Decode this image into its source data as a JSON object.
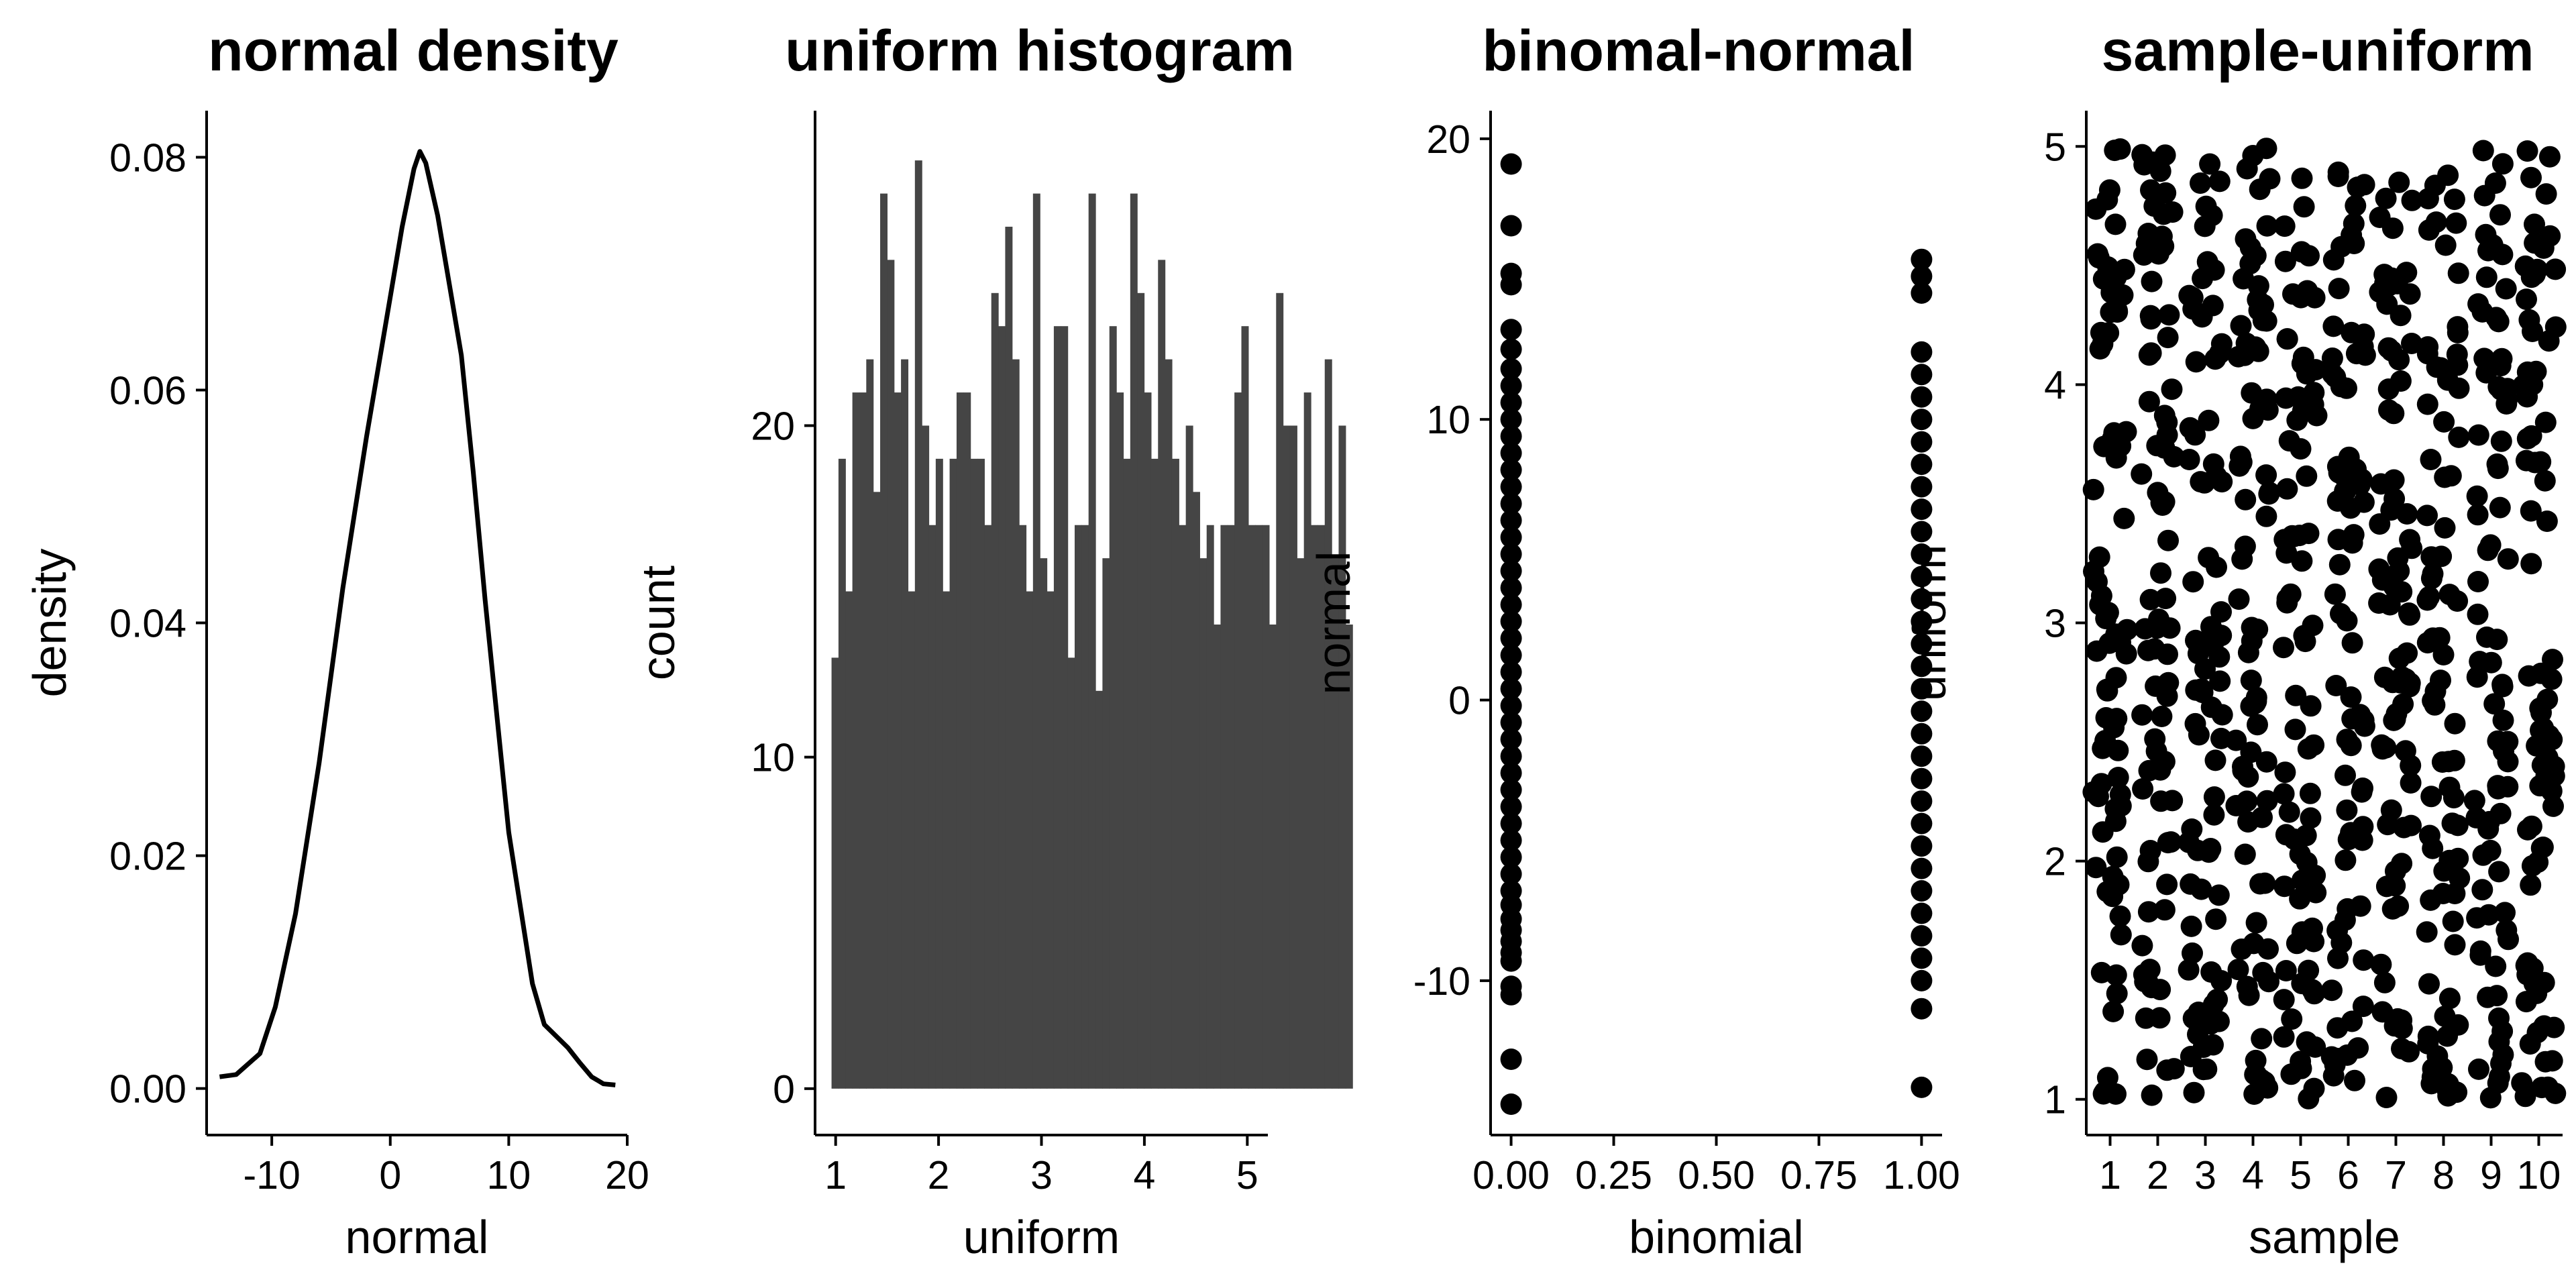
{
  "chart_data": [
    {
      "type": "line",
      "title": "normal density",
      "xlabel": "normal",
      "ylabel": "density",
      "xlim": [
        -15.5,
        20
      ],
      "ylim": [
        -0.004,
        0.084
      ],
      "xticks": [
        -10,
        0,
        10,
        20
      ],
      "xtick_labels": [
        "-10",
        "0",
        "10",
        "20"
      ],
      "yticks": [
        0.0,
        0.02,
        0.04,
        0.06,
        0.08
      ],
      "ytick_labels": [
        "0.00",
        "0.02",
        "0.04",
        "0.06",
        "0.08"
      ],
      "x": [
        -14.4,
        -13,
        -11,
        -9.7,
        -8,
        -6,
        -4,
        -2,
        0,
        1,
        2,
        2.5,
        3,
        4,
        5,
        6,
        7,
        8,
        10,
        12,
        13,
        14,
        15,
        16,
        17,
        18,
        19
      ],
      "y": [
        0.001,
        0.0012,
        0.003,
        0.007,
        0.015,
        0.028,
        0.043,
        0.056,
        0.068,
        0.074,
        0.079,
        0.0805,
        0.0795,
        0.075,
        0.069,
        0.063,
        0.053,
        0.042,
        0.022,
        0.009,
        0.0055,
        0.0045,
        0.0035,
        0.0022,
        0.001,
        0.0004,
        0.0003
      ],
      "color": "#000000"
    },
    {
      "type": "bar",
      "title": "uniform histogram",
      "xlabel": "uniform",
      "ylabel": "count",
      "xlim": [
        0.8,
        5.2
      ],
      "ylim": [
        -1.4,
        29.5
      ],
      "xticks": [
        1,
        2,
        3,
        4,
        5
      ],
      "xtick_labels": [
        "1",
        "2",
        "3",
        "4",
        "5"
      ],
      "yticks": [
        0,
        10,
        20
      ],
      "ytick_labels": [
        "0",
        "10",
        "20"
      ],
      "bin_start": 0.96,
      "bin_width": 0.0675,
      "values": [
        13,
        19,
        15,
        21,
        21,
        22,
        18,
        27,
        25,
        21,
        22,
        15,
        28,
        20,
        17,
        19,
        15,
        19,
        21,
        21,
        19,
        19,
        17,
        24,
        23,
        26,
        22,
        17,
        15,
        27,
        16,
        15,
        23,
        23,
        13,
        17,
        17,
        27,
        12,
        16,
        23,
        21,
        19,
        27,
        24,
        21,
        19,
        25,
        22,
        19,
        17,
        20,
        18,
        16,
        17,
        14,
        17,
        17,
        21,
        23,
        17,
        17,
        17,
        14,
        24,
        20,
        20,
        16,
        21,
        17,
        17,
        22,
        16,
        20,
        14
      ],
      "color": "#454545"
    },
    {
      "type": "scatter",
      "title": "binomal-normal",
      "xlabel": "binomial",
      "ylabel": "normal",
      "xlim": [
        -0.05,
        1.05
      ],
      "ylim": [
        -15.5,
        21
      ],
      "xticks": [
        0,
        0.25,
        0.5,
        0.75,
        1
      ],
      "xtick_labels": [
        "0.00",
        "0.25",
        "0.50",
        "0.75",
        "1.00"
      ],
      "yticks": [
        -10,
        0,
        10,
        20
      ],
      "ytick_labels": [
        "-10",
        "0",
        "10",
        "20"
      ],
      "groups": [
        {
          "x": 0,
          "y": [
            -14.4,
            -12.8,
            -10.5,
            -10.2,
            -9.3,
            -9.0,
            -8.6,
            -8.2,
            -7.8,
            -7.3,
            -6.8,
            -6.2,
            -5.6,
            -5.0,
            -4.4,
            -3.8,
            -3.2,
            -2.6,
            -2.0,
            -1.4,
            -0.8,
            -0.2,
            0.4,
            1.0,
            1.6,
            2.2,
            2.8,
            3.4,
            4.0,
            4.6,
            5.2,
            5.8,
            6.4,
            7.0,
            7.6,
            8.2,
            8.8,
            9.4,
            10.0,
            10.6,
            11.2,
            11.8,
            12.5,
            13.2,
            14.8,
            15.2,
            16.9,
            19.1
          ]
        },
        {
          "x": 1,
          "y": [
            -13.8,
            -11.0,
            -10.0,
            -9.2,
            -8.4,
            -7.6,
            -6.8,
            -6.0,
            -5.2,
            -4.4,
            -3.6,
            -2.8,
            -2.0,
            -1.2,
            -0.4,
            0.4,
            1.2,
            2.0,
            2.8,
            3.6,
            4.4,
            5.2,
            6.0,
            6.8,
            7.6,
            8.4,
            9.2,
            10.0,
            10.8,
            11.6,
            12.4,
            14.5,
            15.1,
            15.7
          ]
        }
      ],
      "color": "#000000"
    },
    {
      "type": "scatter",
      "title": "sample-uniform",
      "xlabel": "sample",
      "ylabel": "uniform",
      "xlim": [
        0.5,
        10.5
      ],
      "ylim": [
        0.85,
        5.15
      ],
      "xticks": [
        1,
        2,
        3,
        4,
        5,
        6,
        7,
        8,
        9,
        10
      ],
      "xtick_labels": [
        "1",
        "2",
        "3",
        "4",
        "5",
        "6",
        "7",
        "8",
        "9",
        "10"
      ],
      "yticks": [
        1,
        2,
        3,
        4,
        5
      ],
      "ytick_labels": [
        "1",
        "2",
        "3",
        "4",
        "5"
      ],
      "color": "#000000"
    }
  ]
}
